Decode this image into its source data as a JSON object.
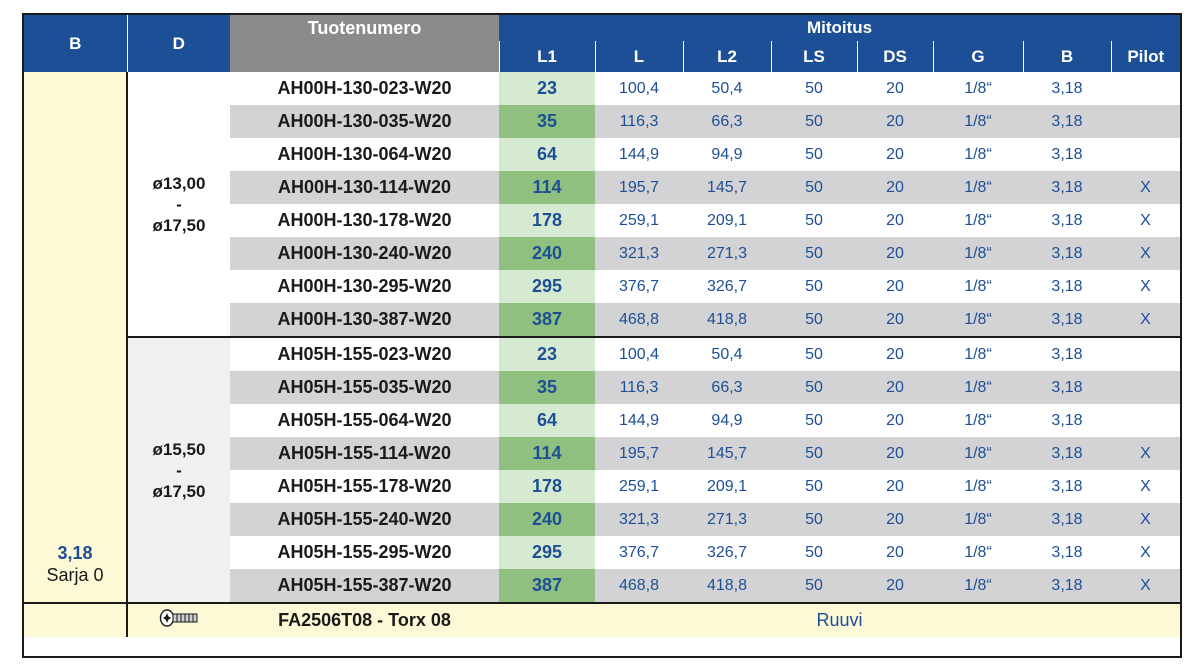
{
  "header": {
    "b": "B",
    "d": "D",
    "product_number": "Tuotenumero",
    "dimensions": "Mitoitus",
    "columns": [
      "L1",
      "L",
      "L2",
      "LS",
      "DS",
      "G",
      "B",
      "Pilot"
    ]
  },
  "series": {
    "b_value": "3,18",
    "name": "Sarja 0"
  },
  "groups": [
    {
      "d_range": [
        "ø13,00",
        "-",
        "ø17,50"
      ],
      "rows": [
        {
          "pn": "AH00H-130-023-W20",
          "l1": "23",
          "l": "100,4",
          "l2": "50,4",
          "ls": "50",
          "ds": "20",
          "g": "1/8“",
          "b": "3,18",
          "pilot": ""
        },
        {
          "pn": "AH00H-130-035-W20",
          "l1": "35",
          "l": "116,3",
          "l2": "66,3",
          "ls": "50",
          "ds": "20",
          "g": "1/8“",
          "b": "3,18",
          "pilot": ""
        },
        {
          "pn": "AH00H-130-064-W20",
          "l1": "64",
          "l": "144,9",
          "l2": "94,9",
          "ls": "50",
          "ds": "20",
          "g": "1/8“",
          "b": "3,18",
          "pilot": ""
        },
        {
          "pn": "AH00H-130-114-W20",
          "l1": "114",
          "l": "195,7",
          "l2": "145,7",
          "ls": "50",
          "ds": "20",
          "g": "1/8“",
          "b": "3,18",
          "pilot": "X"
        },
        {
          "pn": "AH00H-130-178-W20",
          "l1": "178",
          "l": "259,1",
          "l2": "209,1",
          "ls": "50",
          "ds": "20",
          "g": "1/8“",
          "b": "3,18",
          "pilot": "X"
        },
        {
          "pn": "AH00H-130-240-W20",
          "l1": "240",
          "l": "321,3",
          "l2": "271,3",
          "ls": "50",
          "ds": "20",
          "g": "1/8“",
          "b": "3,18",
          "pilot": "X"
        },
        {
          "pn": "AH00H-130-295-W20",
          "l1": "295",
          "l": "376,7",
          "l2": "326,7",
          "ls": "50",
          "ds": "20",
          "g": "1/8“",
          "b": "3,18",
          "pilot": "X"
        },
        {
          "pn": "AH00H-130-387-W20",
          "l1": "387",
          "l": "468,8",
          "l2": "418,8",
          "ls": "50",
          "ds": "20",
          "g": "1/8“",
          "b": "3,18",
          "pilot": "X"
        }
      ]
    },
    {
      "d_range": [
        "ø15,50",
        "-",
        "ø17,50"
      ],
      "rows": [
        {
          "pn": "AH05H-155-023-W20",
          "l1": "23",
          "l": "100,4",
          "l2": "50,4",
          "ls": "50",
          "ds": "20",
          "g": "1/8“",
          "b": "3,18",
          "pilot": ""
        },
        {
          "pn": "AH05H-155-035-W20",
          "l1": "35",
          "l": "116,3",
          "l2": "66,3",
          "ls": "50",
          "ds": "20",
          "g": "1/8“",
          "b": "3,18",
          "pilot": ""
        },
        {
          "pn": "AH05H-155-064-W20",
          "l1": "64",
          "l": "144,9",
          "l2": "94,9",
          "ls": "50",
          "ds": "20",
          "g": "1/8“",
          "b": "3,18",
          "pilot": ""
        },
        {
          "pn": "AH05H-155-114-W20",
          "l1": "114",
          "l": "195,7",
          "l2": "145,7",
          "ls": "50",
          "ds": "20",
          "g": "1/8“",
          "b": "3,18",
          "pilot": "X"
        },
        {
          "pn": "AH05H-155-178-W20",
          "l1": "178",
          "l": "259,1",
          "l2": "209,1",
          "ls": "50",
          "ds": "20",
          "g": "1/8“",
          "b": "3,18",
          "pilot": "X"
        },
        {
          "pn": "AH05H-155-240-W20",
          "l1": "240",
          "l": "321,3",
          "l2": "271,3",
          "ls": "50",
          "ds": "20",
          "g": "1/8“",
          "b": "3,18",
          "pilot": "X"
        },
        {
          "pn": "AH05H-155-295-W20",
          "l1": "295",
          "l": "376,7",
          "l2": "326,7",
          "ls": "50",
          "ds": "20",
          "g": "1/8“",
          "b": "3,18",
          "pilot": "X"
        },
        {
          "pn": "AH05H-155-387-W20",
          "l1": "387",
          "l": "468,8",
          "l2": "418,8",
          "ls": "50",
          "ds": "20",
          "g": "1/8“",
          "b": "3,18",
          "pilot": "X"
        }
      ]
    }
  ],
  "footer": {
    "icon": "screw-icon",
    "pn": "FA2506T08 - Torx 08",
    "label": "Ruuvi"
  },
  "colors": {
    "header_blue": "#1c4f95",
    "header_gray": "#8b8b8d",
    "value_blue": "#1c4f95",
    "l1_green_dark": "#8fc07f",
    "l1_green_light": "#d6ead2",
    "row_gray": "#d3d3d5",
    "series_cream": "#fdf9d7"
  }
}
